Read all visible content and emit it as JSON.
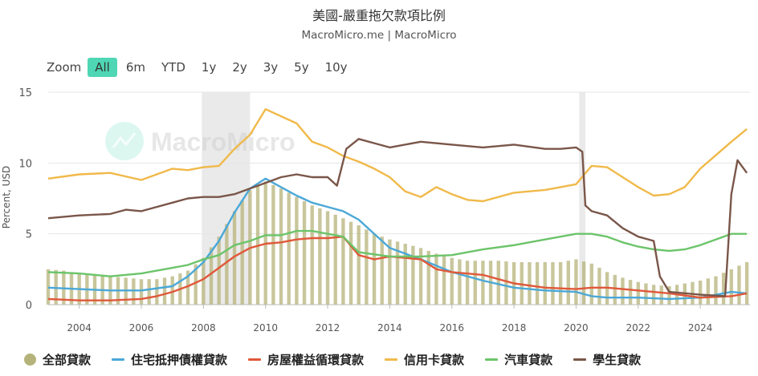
{
  "title": "美國-嚴重拖欠款項比例",
  "subtitle": "MacroMicro.me | MacroMicro",
  "watermark": "MacroMicro",
  "zoom": {
    "label": "Zoom",
    "options": [
      "All",
      "6m",
      "YTD",
      "1y",
      "2y",
      "3y",
      "5y",
      "10y"
    ],
    "active": "All"
  },
  "chart_data": {
    "type": "line",
    "title": "美國-嚴重拖欠款項比例",
    "ylabel": "Percent, USD",
    "xlabel": "",
    "ylim": [
      0,
      15
    ],
    "xlim": [
      2003.0,
      2025.6
    ],
    "yticks": [
      0,
      5,
      10,
      15
    ],
    "xticks": [
      2004,
      2006,
      2008,
      2010,
      2012,
      2014,
      2016,
      2018,
      2020,
      2022,
      2024
    ],
    "grid": true,
    "legend_position": "bottom",
    "recession_shading": [
      [
        2007.95,
        2009.5
      ],
      [
        2020.1,
        2020.3
      ]
    ],
    "series": [
      {
        "name": "全部貸款",
        "type": "bar",
        "color": "#b5b37a",
        "x": [
          2003.0,
          2003.5,
          2004.0,
          2004.5,
          2005.0,
          2005.5,
          2006.0,
          2006.5,
          2007.0,
          2007.5,
          2008.0,
          2008.5,
          2009.0,
          2009.5,
          2010.0,
          2010.5,
          2011.0,
          2011.5,
          2012.0,
          2012.5,
          2013.0,
          2013.5,
          2014.0,
          2014.5,
          2015.0,
          2015.5,
          2016.0,
          2016.5,
          2017.0,
          2017.5,
          2018.0,
          2018.5,
          2019.0,
          2019.5,
          2020.0,
          2020.5,
          2021.0,
          2021.5,
          2022.0,
          2022.5,
          2023.0,
          2023.5,
          2024.0,
          2024.5,
          2025.0,
          2025.5
        ],
        "y": [
          2.5,
          2.4,
          2.2,
          2.1,
          2.0,
          1.9,
          1.8,
          1.8,
          2.0,
          2.4,
          3.3,
          4.8,
          6.6,
          8.1,
          8.7,
          8.2,
          7.6,
          7.0,
          6.6,
          6.1,
          5.6,
          5.0,
          4.6,
          4.3,
          4.0,
          3.6,
          3.3,
          3.1,
          3.1,
          3.1,
          3.0,
          3.0,
          3.0,
          3.0,
          3.2,
          2.9,
          2.3,
          1.9,
          1.6,
          1.4,
          1.3,
          1.5,
          1.7,
          2.0,
          2.5,
          3.0
        ]
      },
      {
        "name": "住宅抵押債權貸款",
        "type": "line",
        "color": "#4aa8d8",
        "x": [
          2003.0,
          2004.0,
          2005.0,
          2006.0,
          2007.0,
          2007.5,
          2008.0,
          2008.5,
          2009.0,
          2009.5,
          2010.0,
          2010.5,
          2011.0,
          2011.5,
          2012.0,
          2012.5,
          2013.0,
          2013.5,
          2014.0,
          2015.0,
          2016.0,
          2017.0,
          2018.0,
          2019.0,
          2020.0,
          2020.5,
          2021.0,
          2022.0,
          2023.0,
          2024.0,
          2025.0,
          2025.5
        ],
        "y": [
          1.2,
          1.1,
          1.0,
          1.0,
          1.3,
          2.0,
          3.0,
          4.5,
          6.5,
          8.2,
          8.9,
          8.3,
          7.7,
          7.2,
          6.9,
          6.6,
          6.0,
          5.0,
          4.0,
          3.2,
          2.3,
          1.7,
          1.2,
          1.0,
          0.9,
          0.6,
          0.5,
          0.5,
          0.4,
          0.5,
          0.9,
          0.8
        ]
      },
      {
        "name": "房屋權益循環貸款",
        "type": "line",
        "color": "#e0583a",
        "x": [
          2003.0,
          2004.0,
          2005.0,
          2006.0,
          2006.5,
          2007.0,
          2007.5,
          2008.0,
          2008.5,
          2009.0,
          2009.5,
          2010.0,
          2010.5,
          2011.0,
          2011.5,
          2012.0,
          2012.5,
          2013.0,
          2013.5,
          2014.0,
          2015.0,
          2015.5,
          2016.0,
          2017.0,
          2018.0,
          2019.0,
          2020.0,
          2020.5,
          2021.0,
          2022.0,
          2023.0,
          2024.0,
          2025.0,
          2025.5
        ],
        "y": [
          0.4,
          0.3,
          0.3,
          0.4,
          0.6,
          0.9,
          1.3,
          1.8,
          2.6,
          3.4,
          4.0,
          4.3,
          4.4,
          4.6,
          4.7,
          4.7,
          4.8,
          3.5,
          3.2,
          3.4,
          3.2,
          2.5,
          2.3,
          2.1,
          1.5,
          1.2,
          1.1,
          1.2,
          1.2,
          1.0,
          0.8,
          0.5,
          0.6,
          0.8
        ]
      },
      {
        "name": "信用卡貸款",
        "type": "line",
        "color": "#f0b94a",
        "x": [
          2003.0,
          2004.0,
          2005.0,
          2006.0,
          2007.0,
          2007.5,
          2008.0,
          2008.5,
          2009.0,
          2009.5,
          2010.0,
          2010.5,
          2011.0,
          2011.5,
          2012.0,
          2012.5,
          2013.0,
          2013.5,
          2014.0,
          2014.5,
          2015.0,
          2015.5,
          2016.0,
          2016.5,
          2017.0,
          2018.0,
          2019.0,
          2019.5,
          2020.0,
          2020.5,
          2021.0,
          2022.0,
          2022.5,
          2023.0,
          2023.5,
          2024.0,
          2025.0,
          2025.5
        ],
        "y": [
          8.9,
          9.2,
          9.3,
          8.8,
          9.6,
          9.5,
          9.7,
          9.8,
          11.0,
          12.0,
          13.8,
          13.3,
          12.8,
          11.5,
          11.1,
          10.5,
          10.1,
          9.6,
          9.0,
          8.0,
          7.6,
          8.3,
          7.8,
          7.4,
          7.3,
          7.9,
          8.1,
          8.3,
          8.5,
          9.8,
          9.7,
          8.3,
          7.7,
          7.8,
          8.3,
          9.6,
          11.5,
          12.4
        ]
      },
      {
        "name": "汽車貸款",
        "type": "line",
        "color": "#6cc46a",
        "x": [
          2003.0,
          2004.0,
          2005.0,
          2006.0,
          2007.0,
          2007.5,
          2008.0,
          2008.5,
          2009.0,
          2009.5,
          2010.0,
          2010.5,
          2011.0,
          2011.5,
          2012.0,
          2012.5,
          2013.0,
          2014.0,
          2015.0,
          2016.0,
          2017.0,
          2018.0,
          2019.0,
          2020.0,
          2020.5,
          2021.0,
          2021.5,
          2022.0,
          2022.5,
          2023.0,
          2023.5,
          2024.0,
          2024.5,
          2025.0,
          2025.5
        ],
        "y": [
          2.3,
          2.2,
          2.0,
          2.2,
          2.6,
          2.8,
          3.2,
          3.5,
          4.2,
          4.5,
          4.9,
          4.9,
          5.2,
          5.2,
          5.0,
          4.8,
          3.7,
          3.4,
          3.4,
          3.5,
          3.9,
          4.2,
          4.6,
          5.0,
          5.0,
          4.8,
          4.4,
          4.1,
          3.9,
          3.8,
          3.9,
          4.2,
          4.6,
          5.0,
          5.0
        ]
      },
      {
        "name": "學生貸款",
        "type": "line",
        "color": "#7a5649",
        "x": [
          2003.0,
          2004.0,
          2005.0,
          2005.5,
          2006.0,
          2007.0,
          2007.5,
          2008.0,
          2008.5,
          2009.0,
          2009.5,
          2010.0,
          2010.5,
          2011.0,
          2011.5,
          2012.0,
          2012.3,
          2012.6,
          2013.0,
          2013.5,
          2014.0,
          2015.0,
          2016.0,
          2017.0,
          2018.0,
          2019.0,
          2019.5,
          2020.0,
          2020.2,
          2020.3,
          2020.5,
          2021.0,
          2021.5,
          2022.0,
          2022.5,
          2022.7,
          2023.0,
          2024.0,
          2024.8,
          2025.0,
          2025.2,
          2025.5
        ],
        "y": [
          6.1,
          6.3,
          6.4,
          6.7,
          6.6,
          7.2,
          7.5,
          7.6,
          7.6,
          7.8,
          8.2,
          8.6,
          9.0,
          9.2,
          9.0,
          9.0,
          8.4,
          11.0,
          11.7,
          11.4,
          11.1,
          11.5,
          11.3,
          11.1,
          11.3,
          11.0,
          11.0,
          11.1,
          10.8,
          7.0,
          6.6,
          6.3,
          5.4,
          4.8,
          4.5,
          2.0,
          0.9,
          0.7,
          0.6,
          7.8,
          10.2,
          9.3
        ]
      }
    ]
  }
}
